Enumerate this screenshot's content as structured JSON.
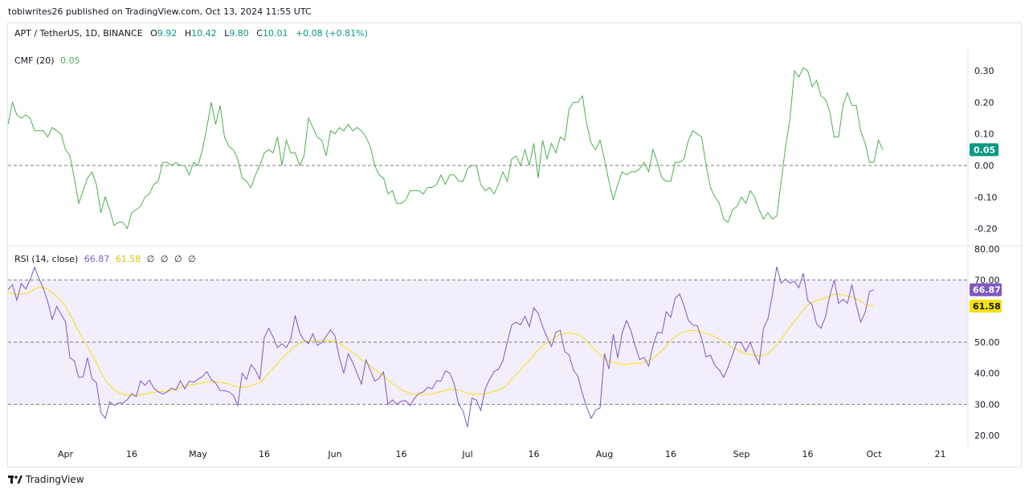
{
  "publisher": "tobiwrites26 published on TradingView.com, Oct 13, 2024 11:55 UTC",
  "symbol": {
    "name": "APT / TetherUS, 1D, BINANCE",
    "open_label": "O",
    "open": "9.92",
    "high_label": "H",
    "high": "10.42",
    "low_label": "L",
    "low": "9.80",
    "close_label": "C",
    "close": "10.01",
    "change": "+0.08 (+0.81%)"
  },
  "colors": {
    "cmf": "#4caf50",
    "rsi": "#7e57c2",
    "rsi_ma": "#f5e10a",
    "band": "#f3eefb",
    "positive": "#089981"
  },
  "x_axis": {
    "labels": [
      "Apr",
      "16",
      "May",
      "16",
      "Jun",
      "16",
      "Jul",
      "16",
      "Aug",
      "16",
      "Sep",
      "16",
      "Oct",
      "21"
    ]
  },
  "footer": {
    "brand": "TradingView",
    "logo_icon": "tradingview-logo-icon"
  },
  "chart_data": [
    {
      "type": "line",
      "title": "CMF (20)",
      "current_value": "0.05",
      "ylim": [
        -0.25,
        0.33
      ],
      "yticks": [
        "0.30",
        "0.20",
        "0.10",
        "0.00",
        "-0.10",
        "-0.20"
      ],
      "zero_line": 0.0,
      "series": [
        {
          "values": [
            0.13,
            0.2,
            0.16,
            0.15,
            0.16,
            0.15,
            0.11,
            0.11,
            0.11,
            0.09,
            0.12,
            0.11,
            0.1,
            0.05,
            0.03,
            -0.04,
            -0.12,
            -0.08,
            -0.04,
            -0.02,
            -0.06,
            -0.15,
            -0.1,
            -0.14,
            -0.19,
            -0.18,
            -0.18,
            -0.2,
            -0.15,
            -0.14,
            -0.13,
            -0.1,
            -0.09,
            -0.06,
            -0.05,
            0.01,
            0.01,
            0.0,
            0.01,
            0.0,
            0.0,
            -0.03,
            0.01,
            0.0,
            0.05,
            0.12,
            0.2,
            0.13,
            0.19,
            0.09,
            0.06,
            0.05,
            0.02,
            -0.04,
            -0.05,
            -0.07,
            -0.03,
            0.0,
            0.04,
            0.05,
            0.04,
            0.09,
            0.0,
            0.08,
            0.04,
            0.04,
            0.0,
            0.03,
            0.15,
            0.12,
            0.09,
            0.08,
            0.03,
            0.11,
            0.1,
            0.12,
            0.11,
            0.13,
            0.11,
            0.12,
            0.11,
            0.09,
            0.06,
            0.0,
            -0.03,
            -0.04,
            -0.09,
            -0.08,
            -0.12,
            -0.12,
            -0.11,
            -0.08,
            -0.08,
            -0.08,
            -0.09,
            -0.07,
            -0.07,
            -0.06,
            -0.03,
            -0.06,
            -0.03,
            -0.03,
            -0.05,
            -0.05,
            -0.01,
            0.0,
            0.0,
            -0.06,
            -0.08,
            -0.07,
            -0.09,
            -0.06,
            -0.02,
            -0.05,
            0.02,
            0.03,
            0.0,
            0.05,
            0.0,
            0.07,
            -0.04,
            0.08,
            0.02,
            0.07,
            0.04,
            0.09,
            0.08,
            0.18,
            0.2,
            0.2,
            0.22,
            0.13,
            0.07,
            0.05,
            0.08,
            0.02,
            -0.05,
            -0.11,
            -0.06,
            -0.02,
            -0.03,
            -0.02,
            -0.02,
            -0.01,
            0.01,
            -0.02,
            0.05,
            0.01,
            -0.04,
            -0.05,
            -0.05,
            0.01,
            0.01,
            0.02,
            0.08,
            0.11,
            0.1,
            0.09,
            0.0,
            -0.07,
            -0.1,
            -0.12,
            -0.17,
            -0.18,
            -0.14,
            -0.13,
            -0.1,
            -0.12,
            -0.08,
            -0.1,
            -0.14,
            -0.17,
            -0.15,
            -0.17,
            -0.16,
            -0.05,
            0.06,
            0.15,
            0.3,
            0.28,
            0.31,
            0.3,
            0.25,
            0.27,
            0.22,
            0.21,
            0.17,
            0.09,
            0.09,
            0.19,
            0.23,
            0.19,
            0.19,
            0.11,
            0.07,
            0.01,
            0.01,
            0.08,
            0.05
          ]
        }
      ]
    },
    {
      "type": "line",
      "title": "RSI (14, close)",
      "legend_values": [
        "66.87",
        "61.58"
      ],
      "zero_markers": [
        "∅",
        "∅",
        "∅",
        "∅"
      ],
      "ylim": [
        16,
        82
      ],
      "yticks": [
        "80.00",
        "70.00",
        "50.00",
        "40.00",
        "30.00",
        "20.00"
      ],
      "band": [
        30,
        70
      ],
      "midline": 50,
      "series": [
        {
          "values": [
            66.87,
            68.5,
            63.5,
            68.9,
            67.1,
            70.0,
            74.1,
            70.5,
            67.2,
            63.0,
            57.3,
            61.5,
            59.0,
            56.6,
            45.0,
            44.0,
            38.6,
            38.9,
            45.0,
            38.2,
            37.0,
            27.5,
            25.5,
            30.8,
            29.7,
            30.4,
            30.5,
            31.5,
            33.5,
            32.5,
            37.6,
            36.1,
            37.8,
            35.2,
            34.0,
            33.3,
            34.0,
            35.2,
            34.6,
            37.6,
            35.0,
            37.5,
            37.1,
            38.1,
            39.0,
            40.5,
            38.0,
            36.8,
            34.5,
            34.4,
            34.0,
            33.0,
            29.6,
            40.0,
            38.0,
            42.8,
            41.0,
            38.1,
            51.5,
            54.5,
            51.7,
            48.2,
            49.5,
            48.3,
            51.0,
            58.6,
            53.0,
            50.6,
            49.5,
            52.7,
            49.0,
            49.8,
            51.8,
            54.0,
            52.0,
            45.0,
            40.0,
            46.3,
            43.5,
            40.0,
            36.5,
            44.3,
            41.0,
            37.5,
            38.4,
            40.5,
            30.0,
            31.4,
            30.0,
            31.0,
            31.2,
            29.6,
            32.0,
            33.5,
            34.0,
            35.5,
            35.0,
            37.6,
            37.5,
            40.8,
            40.0,
            36.5,
            30.0,
            27.8,
            22.7,
            32.0,
            31.4,
            28.0,
            35.0,
            38.0,
            40.5,
            41.3,
            44.0,
            50.0,
            55.5,
            56.4,
            55.6,
            58.3,
            55.0,
            61.0,
            59.3,
            55.0,
            51.6,
            48.6,
            53.2,
            53.8,
            47.0,
            45.9,
            41.0,
            39.0,
            33.5,
            29.0,
            25.5,
            28.2,
            28.8,
            46.3,
            41.4,
            52.6,
            44.9,
            52.9,
            57.0,
            53.7,
            48.5,
            44.4,
            45.1,
            42.3,
            49.0,
            53.2,
            52.9,
            59.8,
            58.0,
            64.1,
            65.5,
            61.7,
            57.0,
            55.5,
            55.3,
            51.2,
            45.3,
            45.8,
            42.5,
            41.0,
            38.7,
            42.0,
            46.0,
            50.1,
            49.8,
            47.0,
            50.0,
            46.0,
            43.0,
            54.5,
            57.5,
            65.2,
            74.3,
            69.0,
            70.3,
            69.0,
            69.6,
            67.5,
            72.2,
            63.5,
            62.0,
            56.0,
            54.5,
            58.0,
            65.0,
            70.0,
            62.5,
            63.8,
            62.5,
            68.5,
            62.0,
            56.5,
            59.5,
            66.3,
            66.87
          ]
        },
        {
          "values": [
            66.0,
            65.7,
            65.3,
            65.5,
            65.6,
            66.2,
            67.1,
            67.6,
            67.6,
            67.1,
            65.9,
            64.8,
            63.4,
            61.6,
            58.9,
            56.3,
            53.5,
            50.8,
            48.6,
            45.9,
            43.4,
            40.4,
            37.8,
            36.2,
            34.7,
            33.9,
            33.3,
            33.0,
            32.9,
            32.9,
            33.1,
            33.3,
            33.7,
            33.9,
            34.1,
            34.1,
            34.3,
            34.5,
            34.8,
            35.4,
            35.8,
            36.2,
            36.4,
            36.6,
            36.9,
            37.2,
            37.3,
            37.3,
            37.1,
            36.8,
            36.5,
            36.0,
            35.5,
            35.5,
            35.6,
            36.0,
            36.5,
            36.9,
            38.4,
            40.0,
            41.7,
            43.2,
            44.7,
            46.2,
            47.4,
            48.9,
            49.7,
            50.1,
            50.3,
            50.6,
            50.6,
            50.4,
            50.5,
            50.5,
            50.2,
            49.6,
            48.6,
            47.8,
            46.8,
            45.7,
            44.3,
            43.6,
            42.4,
            41.2,
            40.2,
            39.3,
            37.8,
            36.7,
            35.8,
            34.8,
            34.1,
            33.5,
            33.1,
            33.0,
            33.1,
            33.3,
            33.4,
            33.7,
            34.1,
            34.5,
            34.8,
            34.9,
            34.6,
            34.2,
            33.5,
            33.4,
            33.3,
            33.2,
            33.5,
            33.8,
            34.2,
            34.6,
            35.2,
            36.4,
            38.0,
            39.6,
            41.1,
            42.8,
            44.1,
            45.8,
            47.5,
            48.8,
            49.8,
            50.7,
            51.6,
            52.5,
            52.8,
            53.0,
            52.8,
            52.4,
            51.6,
            50.4,
            48.8,
            47.4,
            46.0,
            44.8,
            43.9,
            43.5,
            43.2,
            42.9,
            42.9,
            43.1,
            43.1,
            43.2,
            43.7,
            44.2,
            44.8,
            46.0,
            47.3,
            48.8,
            50.5,
            51.8,
            52.7,
            53.3,
            53.7,
            53.8,
            53.6,
            53.2,
            52.9,
            52.4,
            51.7,
            50.9,
            50.0,
            49.2,
            48.3,
            47.6,
            46.9,
            46.3,
            45.9,
            45.9,
            45.5,
            45.8,
            46.4,
            47.6,
            49.3,
            51.1,
            53.0,
            55.0,
            56.7,
            58.6,
            60.4,
            61.8,
            62.8,
            63.4,
            63.8,
            64.2,
            64.7,
            65.4,
            65.5,
            65.2,
            64.8,
            64.5,
            64.0,
            63.2,
            62.2,
            61.8,
            61.58
          ]
        }
      ]
    }
  ]
}
